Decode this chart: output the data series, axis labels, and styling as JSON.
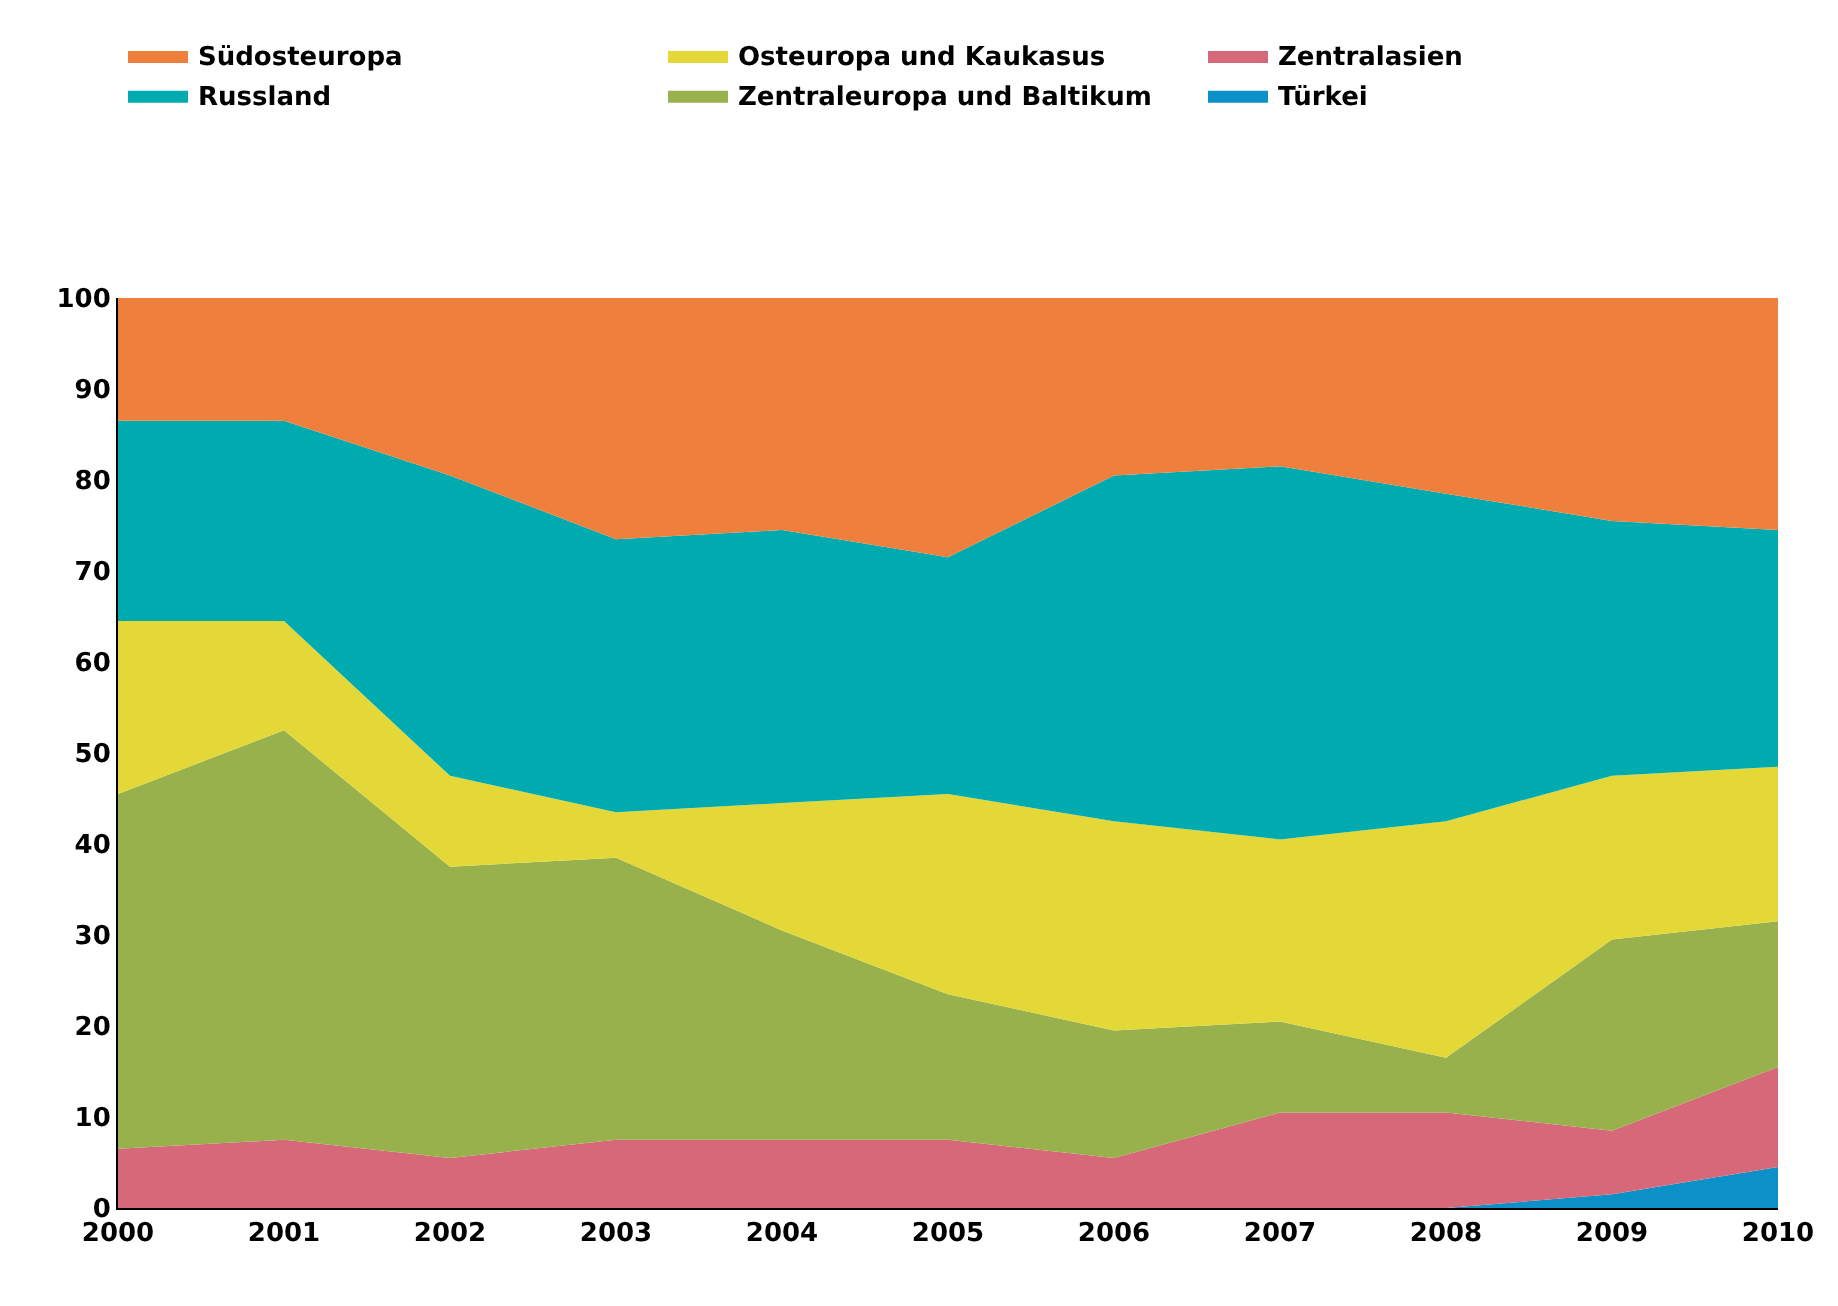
{
  "chart_data": {
    "type": "area",
    "stacked": true,
    "x": [
      2000,
      2001,
      2002,
      2003,
      2004,
      2005,
      2006,
      2007,
      2008,
      2009,
      2010
    ],
    "xlim": [
      2000,
      2010
    ],
    "xticks": [
      2000,
      2001,
      2002,
      2003,
      2004,
      2005,
      2006,
      2007,
      2008,
      2009,
      2010
    ],
    "ylim": [
      0,
      100
    ],
    "yticks": [
      0,
      10,
      20,
      30,
      40,
      50,
      60,
      70,
      80,
      90,
      100
    ],
    "legend": "top",
    "marker": "none",
    "series": [
      {
        "name": "Türkei",
        "color": "#0c90c8",
        "values": [
          0,
          0,
          0,
          0,
          0,
          0,
          0,
          0,
          0,
          1.5,
          4.5
        ]
      },
      {
        "name": "Zentralasien",
        "color": "#d6687a",
        "values": [
          6.5,
          7.5,
          5.5,
          7.5,
          7.5,
          7.5,
          5.5,
          10.5,
          10.5,
          7,
          11
        ]
      },
      {
        "name": "Zentraleuropa und Baltikum",
        "color": "#98b14c",
        "values": [
          39,
          45,
          32,
          31,
          23,
          16,
          14,
          10,
          6,
          21,
          16
        ]
      },
      {
        "name": "Osteuropa und Kaukasus",
        "color": "#e3d838",
        "values": [
          19,
          12,
          10,
          5,
          14,
          22,
          23,
          20,
          26,
          18,
          17
        ]
      },
      {
        "name": "Russland",
        "color": "#00abb0",
        "values": [
          22,
          22,
          33,
          30,
          30,
          26,
          38,
          41,
          36,
          28,
          26
        ]
      },
      {
        "name": "Südosteuropa",
        "color": "#ef7f3c",
        "values": [
          13.5,
          13.5,
          19.5,
          26.5,
          25.5,
          28.5,
          19.5,
          18.5,
          21.5,
          24.5,
          25.5
        ]
      }
    ]
  }
}
